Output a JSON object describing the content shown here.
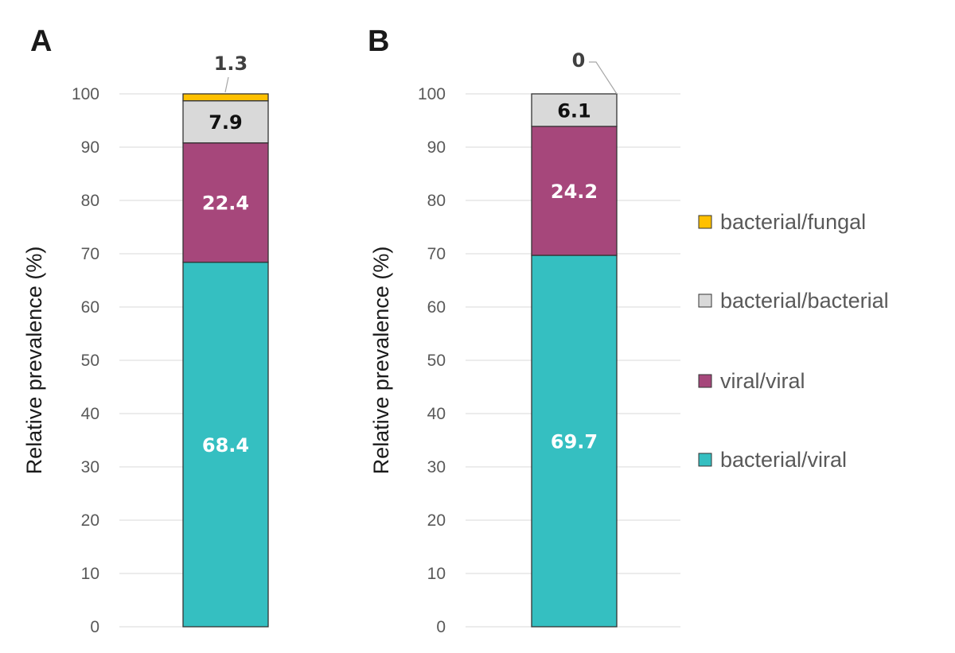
{
  "chart_data": [
    {
      "type": "bar",
      "stacked": true,
      "panel_label": "A",
      "ylabel": "Relative prevalence  (%)",
      "ylim": [
        0,
        100
      ],
      "yticks": [
        0,
        10,
        20,
        30,
        40,
        50,
        60,
        70,
        80,
        90,
        100
      ],
      "grid": true,
      "series": [
        {
          "name": "bacterial/viral",
          "value": 68.4,
          "label": "68.4",
          "color": "#35BFC1",
          "label_color": "#ffffff"
        },
        {
          "name": "viral/viral",
          "value": 22.4,
          "label": "22.4",
          "color": "#A6477B",
          "label_color": "#ffffff"
        },
        {
          "name": "bacterial/bacterial",
          "value": 7.9,
          "label": "7.9",
          "color": "#D9D9D9",
          "label_color": "#111111"
        },
        {
          "name": "bacterial/fungal",
          "value": 1.3,
          "label": "1.3",
          "color": "#FFC000",
          "label_color": "#404040",
          "callout": true
        }
      ]
    },
    {
      "type": "bar",
      "stacked": true,
      "panel_label": "B",
      "ylabel": "Relative prevalence  (%)",
      "ylim": [
        0,
        100
      ],
      "yticks": [
        0,
        10,
        20,
        30,
        40,
        50,
        60,
        70,
        80,
        90,
        100
      ],
      "grid": true,
      "series": [
        {
          "name": "bacterial/viral",
          "value": 69.7,
          "label": "69.7",
          "color": "#35BFC1",
          "label_color": "#ffffff"
        },
        {
          "name": "viral/viral",
          "value": 24.2,
          "label": "24.2",
          "color": "#A6477B",
          "label_color": "#ffffff"
        },
        {
          "name": "bacterial/bacterial",
          "value": 6.1,
          "label": "6.1",
          "color": "#D9D9D9",
          "label_color": "#111111"
        },
        {
          "name": "bacterial/fungal",
          "value": 0,
          "label": "0",
          "color": "#FFC000",
          "label_color": "#404040",
          "callout": true
        }
      ]
    }
  ],
  "legend": {
    "placement": "right",
    "items": [
      {
        "name": "bacterial/fungal",
        "color": "#FFC000"
      },
      {
        "name": "bacterial/bacterial",
        "color": "#D9D9D9"
      },
      {
        "name": "viral/viral",
        "color": "#A6477B"
      },
      {
        "name": "bacterial/viral",
        "color": "#35BFC1"
      }
    ]
  }
}
